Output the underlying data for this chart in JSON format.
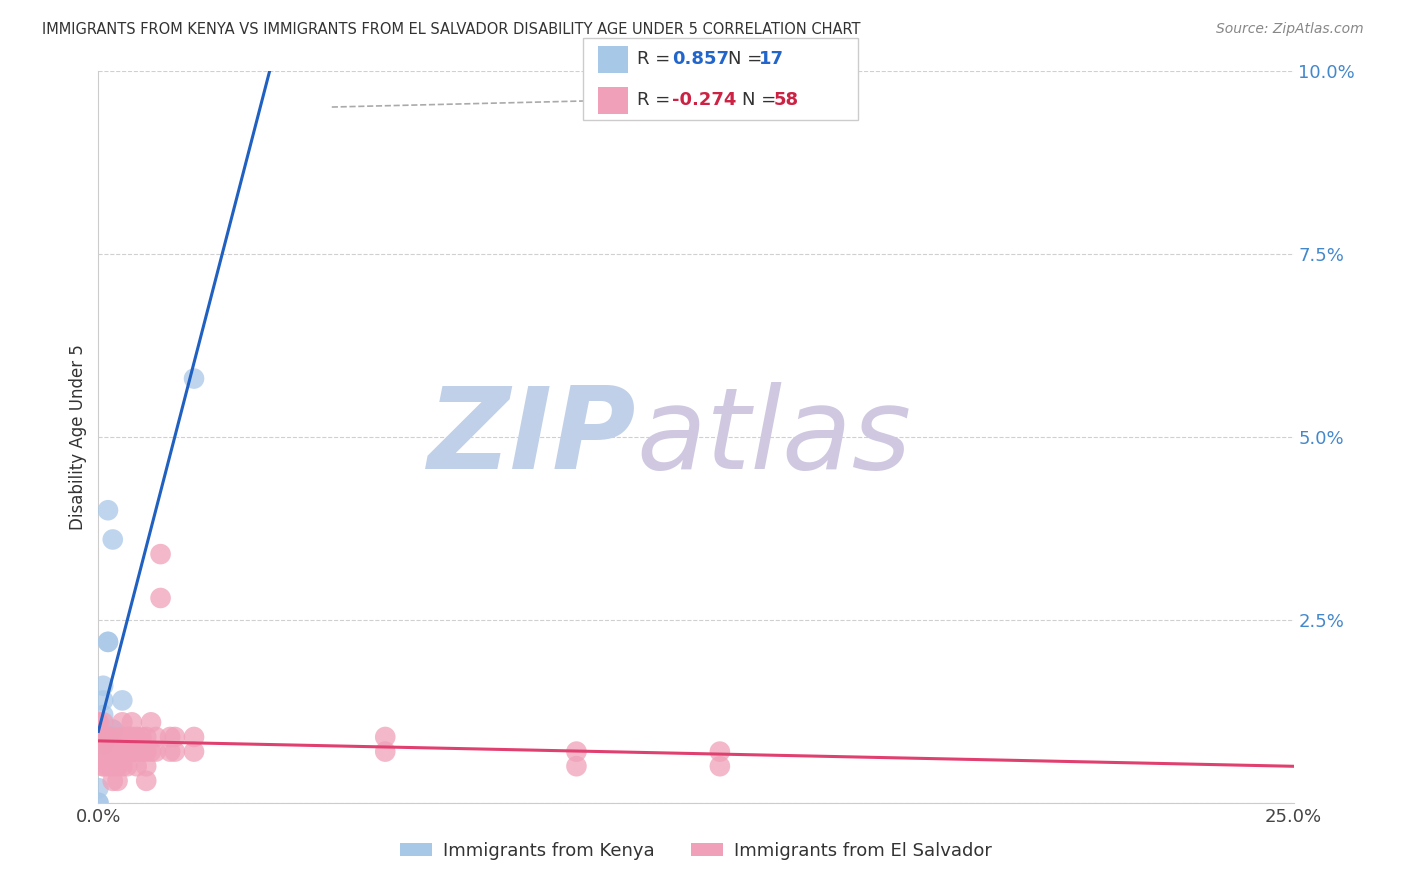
{
  "title": "IMMIGRANTS FROM KENYA VS IMMIGRANTS FROM EL SALVADOR DISABILITY AGE UNDER 5 CORRELATION CHART",
  "source": "Source: ZipAtlas.com",
  "ylabel": "Disability Age Under 5",
  "xlim": [
    0.0,
    0.25
  ],
  "ylim": [
    0.0,
    0.1
  ],
  "kenya_R": 0.857,
  "kenya_N": 17,
  "salvador_R": -0.274,
  "salvador_N": 58,
  "kenya_color": "#a8c8e8",
  "salvador_color": "#f0a0b8",
  "kenya_line_color": "#2060c0",
  "salvador_line_color": "#e04070",
  "kenya_points": [
    [
      0.0,
      0.0
    ],
    [
      0.0,
      0.0
    ],
    [
      0.0,
      0.002
    ],
    [
      0.001,
      0.008
    ],
    [
      0.001,
      0.008
    ],
    [
      0.001,
      0.01
    ],
    [
      0.001,
      0.012
    ],
    [
      0.001,
      0.014
    ],
    [
      0.001,
      0.016
    ],
    [
      0.002,
      0.022
    ],
    [
      0.002,
      0.022
    ],
    [
      0.002,
      0.04
    ],
    [
      0.003,
      0.036
    ],
    [
      0.003,
      0.01
    ],
    [
      0.003,
      0.01
    ],
    [
      0.005,
      0.014
    ],
    [
      0.02,
      0.058
    ]
  ],
  "salvador_points": [
    [
      0.0,
      0.011
    ],
    [
      0.0,
      0.011
    ],
    [
      0.0,
      0.009
    ],
    [
      0.0,
      0.007
    ],
    [
      0.001,
      0.011
    ],
    [
      0.001,
      0.009
    ],
    [
      0.001,
      0.009
    ],
    [
      0.001,
      0.007
    ],
    [
      0.001,
      0.005
    ],
    [
      0.001,
      0.005
    ],
    [
      0.002,
      0.009
    ],
    [
      0.002,
      0.009
    ],
    [
      0.002,
      0.007
    ],
    [
      0.002,
      0.005
    ],
    [
      0.003,
      0.009
    ],
    [
      0.003,
      0.007
    ],
    [
      0.003,
      0.005
    ],
    [
      0.003,
      0.003
    ],
    [
      0.004,
      0.007
    ],
    [
      0.004,
      0.005
    ],
    [
      0.004,
      0.003
    ],
    [
      0.005,
      0.011
    ],
    [
      0.005,
      0.009
    ],
    [
      0.005,
      0.007
    ],
    [
      0.005,
      0.005
    ],
    [
      0.006,
      0.009
    ],
    [
      0.006,
      0.007
    ],
    [
      0.006,
      0.005
    ],
    [
      0.007,
      0.011
    ],
    [
      0.007,
      0.009
    ],
    [
      0.007,
      0.007
    ],
    [
      0.008,
      0.009
    ],
    [
      0.008,
      0.007
    ],
    [
      0.008,
      0.005
    ],
    [
      0.009,
      0.009
    ],
    [
      0.009,
      0.007
    ],
    [
      0.01,
      0.009
    ],
    [
      0.01,
      0.007
    ],
    [
      0.01,
      0.005
    ],
    [
      0.01,
      0.003
    ],
    [
      0.011,
      0.011
    ],
    [
      0.011,
      0.007
    ],
    [
      0.012,
      0.009
    ],
    [
      0.012,
      0.007
    ],
    [
      0.013,
      0.034
    ],
    [
      0.013,
      0.028
    ],
    [
      0.015,
      0.009
    ],
    [
      0.015,
      0.007
    ],
    [
      0.016,
      0.009
    ],
    [
      0.016,
      0.007
    ],
    [
      0.02,
      0.009
    ],
    [
      0.02,
      0.007
    ],
    [
      0.06,
      0.009
    ],
    [
      0.06,
      0.007
    ],
    [
      0.1,
      0.007
    ],
    [
      0.1,
      0.005
    ],
    [
      0.13,
      0.007
    ],
    [
      0.13,
      0.005
    ]
  ],
  "watermark_zip": "ZIP",
  "watermark_atlas": "atlas",
  "watermark_color_zip": "#c0d0e8",
  "watermark_color_atlas": "#d0c8e0",
  "background_color": "#ffffff",
  "grid_color": "#d0d0d0"
}
